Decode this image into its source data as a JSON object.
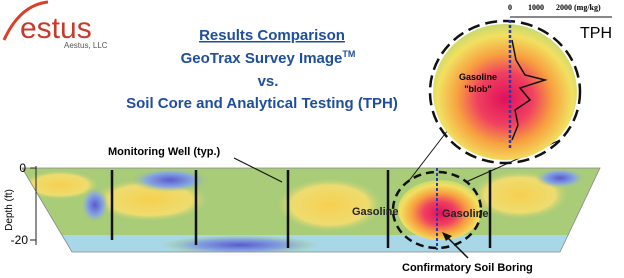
{
  "logo": {
    "name": "estus",
    "company": "Aestus, LLC"
  },
  "header": {
    "title": "Results Comparison",
    "line1": "GeoTrax Survey Image",
    "trademark": "TM",
    "line2": "vs.",
    "line3": "Soil Core and Analytical Testing (TPH)"
  },
  "inset": {
    "scale_0": "0",
    "scale_1": "1000",
    "scale_2": "2000 (mg/kg)",
    "label": "TPH",
    "blob_1": "Gasoline",
    "blob_2": "\"blob\""
  },
  "section": {
    "well_label": "Monitoring Well (typ.)",
    "axis_label": "Depth (ft)",
    "tick_0": "0",
    "tick_20": "-20",
    "zone_1": "Gasoline",
    "zone_2": "Gasoline",
    "boring_label": "Confirmatory Soil Boring"
  }
}
